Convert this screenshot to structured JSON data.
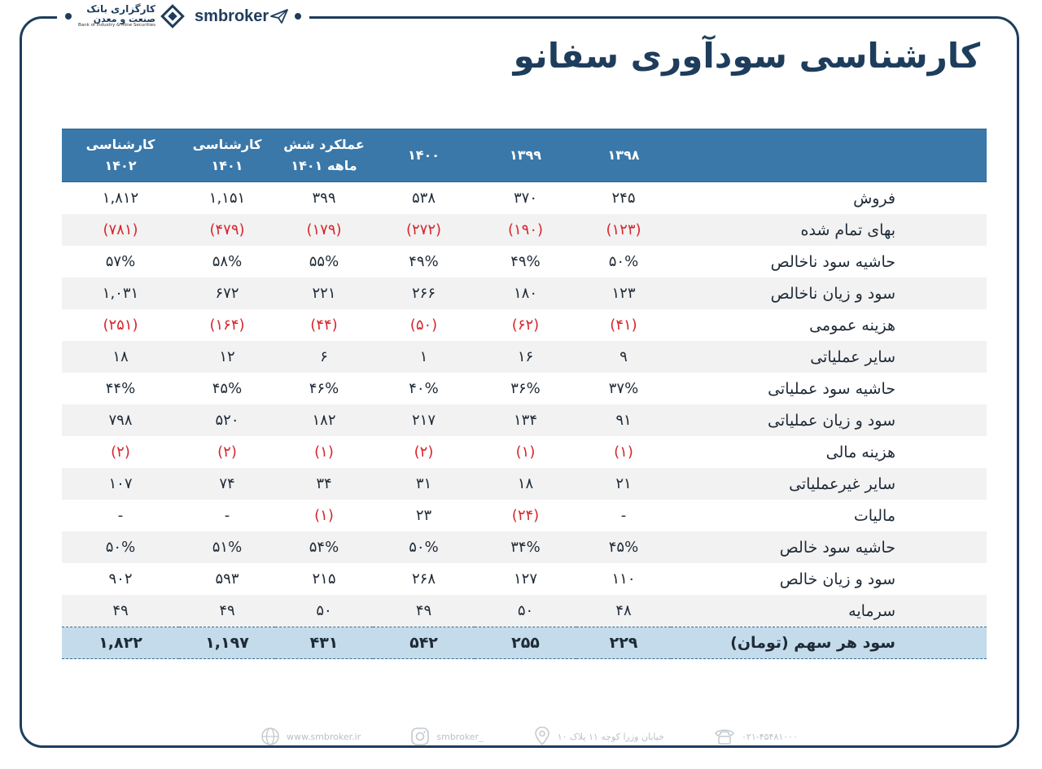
{
  "header": {
    "bank_name_line1": "کارگزاری بانک",
    "bank_name_line2": "صنعت و معدن",
    "bank_name_en": "Bank of Industry & Mine Securities",
    "brand": "smbroker"
  },
  "title": "کارشناسی سودآوری سفانو",
  "table": {
    "columns": [
      {
        "line1": "۱۳۹۸",
        "line2": ""
      },
      {
        "line1": "۱۳۹۹",
        "line2": ""
      },
      {
        "line1": "۱۴۰۰",
        "line2": ""
      },
      {
        "line1": "عملکرد شش",
        "line2": "ماهه ۱۴۰۱"
      },
      {
        "line1": "کارشناسی",
        "line2": "۱۴۰۱"
      },
      {
        "line1": "کارشناسی",
        "line2": "۱۴۰۲"
      }
    ],
    "rows": [
      {
        "label": "فروش",
        "values": [
          "۲۴۵",
          "۳۷۰",
          "۵۳۸",
          "۳۹۹",
          "۱,۱۵۱",
          "۱,۸۱۲"
        ]
      },
      {
        "label": "بهای تمام شده",
        "values": [
          "(۱۲۳)",
          "(۱۹۰)",
          "(۲۷۲)",
          "(۱۷۹)",
          "(۴۷۹)",
          "(۷۸۱)"
        ]
      },
      {
        "label": "حاشیه سود ناخالص",
        "values": [
          "۵۰%",
          "۴۹%",
          "۴۹%",
          "۵۵%",
          "۵۸%",
          "۵۷%"
        ]
      },
      {
        "label": "سود و زیان ناخالص",
        "values": [
          "۱۲۳",
          "۱۸۰",
          "۲۶۶",
          "۲۲۱",
          "۶۷۲",
          "۱,۰۳۱"
        ]
      },
      {
        "label": "هزینه عمومی",
        "values": [
          "(۴۱)",
          "(۶۲)",
          "(۵۰)",
          "(۴۴)",
          "(۱۶۴)",
          "(۲۵۱)"
        ]
      },
      {
        "label": "سایر  عملیاتی",
        "values": [
          "۹",
          "۱۶",
          "۱",
          "۶",
          "۱۲",
          "۱۸"
        ]
      },
      {
        "label": "حاشیه سود عملیاتی",
        "values": [
          "۳۷%",
          "۳۶%",
          "۴۰%",
          "۴۶%",
          "۴۵%",
          "۴۴%"
        ]
      },
      {
        "label": "سود و زیان عملیاتی",
        "values": [
          "۹۱",
          "۱۳۴",
          "۲۱۷",
          "۱۸۲",
          "۵۲۰",
          "۷۹۸"
        ]
      },
      {
        "label": "هزینه مالی",
        "values": [
          "(۱)",
          "(۱)",
          "(۲)",
          "(۱)",
          "(۲)",
          "(۲)"
        ]
      },
      {
        "label": "سایر غیرعملیاتی",
        "values": [
          "۲۱",
          "۱۸",
          "۳۱",
          "۳۴",
          "۷۴",
          "۱۰۷"
        ]
      },
      {
        "label": "مالیات",
        "values": [
          "-",
          "(۲۴)",
          "۲۳",
          "(۱)",
          "-",
          "-"
        ]
      },
      {
        "label": "حاشیه سود خالص",
        "values": [
          "۴۵%",
          "۳۴%",
          "۵۰%",
          "۵۴%",
          "۵۱%",
          "۵۰%"
        ]
      },
      {
        "label": "سود و زیان خالص",
        "values": [
          "۱۱۰",
          "۱۲۷",
          "۲۶۸",
          "۲۱۵",
          "۵۹۳",
          "۹۰۲"
        ]
      },
      {
        "label": "سرمایه",
        "values": [
          "۴۸",
          "۵۰",
          "۴۹",
          "۵۰",
          "۴۹",
          "۴۹"
        ]
      }
    ],
    "total": {
      "label": "سود هر سهم (تومان)",
      "values": [
        "۲۲۹",
        "۲۵۵",
        "۵۴۲",
        "۴۳۱",
        "۱,۱۹۷",
        "۱,۸۲۲"
      ]
    }
  },
  "footer": {
    "website": "www.smbroker.ir",
    "instagram": "smbroker_",
    "address": "خیابان وزرا کوچه ۱۱ پلاک ۱۰",
    "phone": "۰۲۱-۴۵۴۸۱۰۰۰"
  },
  "colors": {
    "navy": "#1e3d5c",
    "header_blue": "#3a78a9",
    "negative_red": "#d7262e",
    "total_row_bg": "#c3dbea"
  }
}
